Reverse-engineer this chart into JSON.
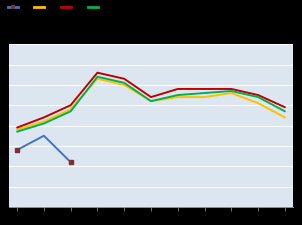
{
  "series": {
    "blue": [
      2.8,
      3.5,
      2.2,
      null,
      null,
      null,
      null,
      null,
      null,
      null,
      null
    ],
    "yellow": [
      3.8,
      4.2,
      4.8,
      6.3,
      6.0,
      5.2,
      5.4,
      5.4,
      5.6,
      5.1,
      4.4
    ],
    "red": [
      3.9,
      4.4,
      5.0,
      6.6,
      6.3,
      5.4,
      5.8,
      5.8,
      5.8,
      5.5,
      4.9
    ],
    "green": [
      3.7,
      4.1,
      4.7,
      6.4,
      6.1,
      5.2,
      5.5,
      5.6,
      5.7,
      5.4,
      4.7
    ]
  },
  "colors": {
    "blue": "#4472c4",
    "yellow": "#ffc000",
    "red": "#c00000",
    "green": "#00b050"
  },
  "marker_color": "#7f3030",
  "bg_color": "#dce6f1",
  "outer_bg": "#000000",
  "grid_color": "#ffffff",
  "n_points": 11,
  "ylim": [
    0,
    8
  ],
  "yticks": [
    0,
    1,
    2,
    3,
    4,
    5,
    6,
    7,
    8
  ],
  "linewidth": 1.4
}
